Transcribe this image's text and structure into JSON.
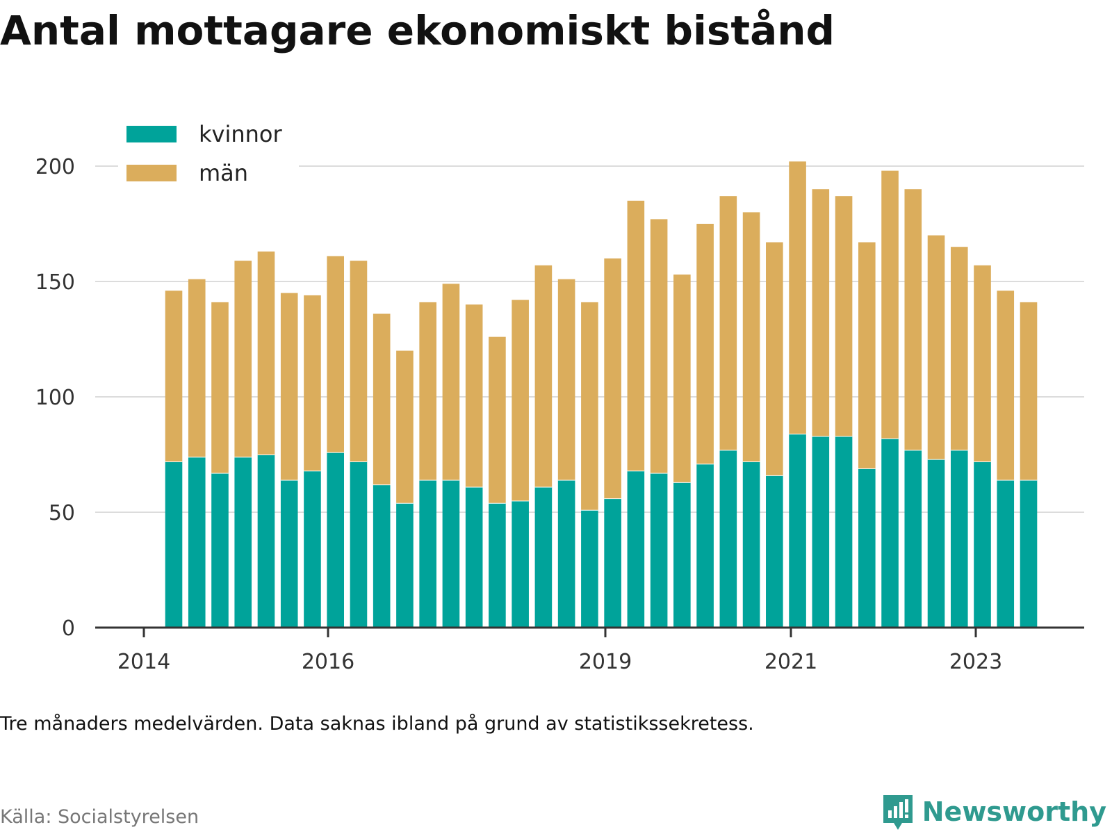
{
  "title": "Antal mottagare ekonomiskt bistånd",
  "note": "Tre månaders medelvärden. Data saknas ibland på grund av statistikssekretess.",
  "source": "Källa: Socialstyrelsen",
  "brand": "Newsworthy",
  "colors": {
    "kvinnor": "#00a39a",
    "man": "#dbad5c",
    "grid": "#dcdcdc",
    "axis": "#333333",
    "brand": "#2f9a8f"
  },
  "chart_data": {
    "type": "bar",
    "stacked": true,
    "x_tick_labels": [
      "2014",
      "2016",
      "2019",
      "2021",
      "2023"
    ],
    "y_ticks": [
      0,
      50,
      100,
      150,
      200
    ],
    "ylim": [
      0,
      200
    ],
    "grid": "horizontal",
    "legend_placement": "top-left",
    "series": [
      {
        "name": "kvinnor",
        "values": [
          72,
          74,
          67,
          74,
          75,
          64,
          68,
          76,
          72,
          62,
          54,
          64,
          64,
          61,
          54,
          55,
          61,
          64,
          51,
          56,
          68,
          67,
          63,
          71,
          77,
          72,
          66,
          84,
          83,
          83,
          69,
          82,
          77,
          73,
          77,
          72,
          64,
          64
        ]
      },
      {
        "name": "män",
        "values": [
          74,
          77,
          74,
          85,
          88,
          81,
          76,
          85,
          87,
          74,
          66,
          77,
          85,
          79,
          72,
          87,
          96,
          87,
          90,
          104,
          117,
          110,
          90,
          104,
          110,
          108,
          101,
          118,
          107,
          104,
          98,
          116,
          113,
          97,
          88,
          85,
          82,
          77
        ]
      }
    ]
  }
}
